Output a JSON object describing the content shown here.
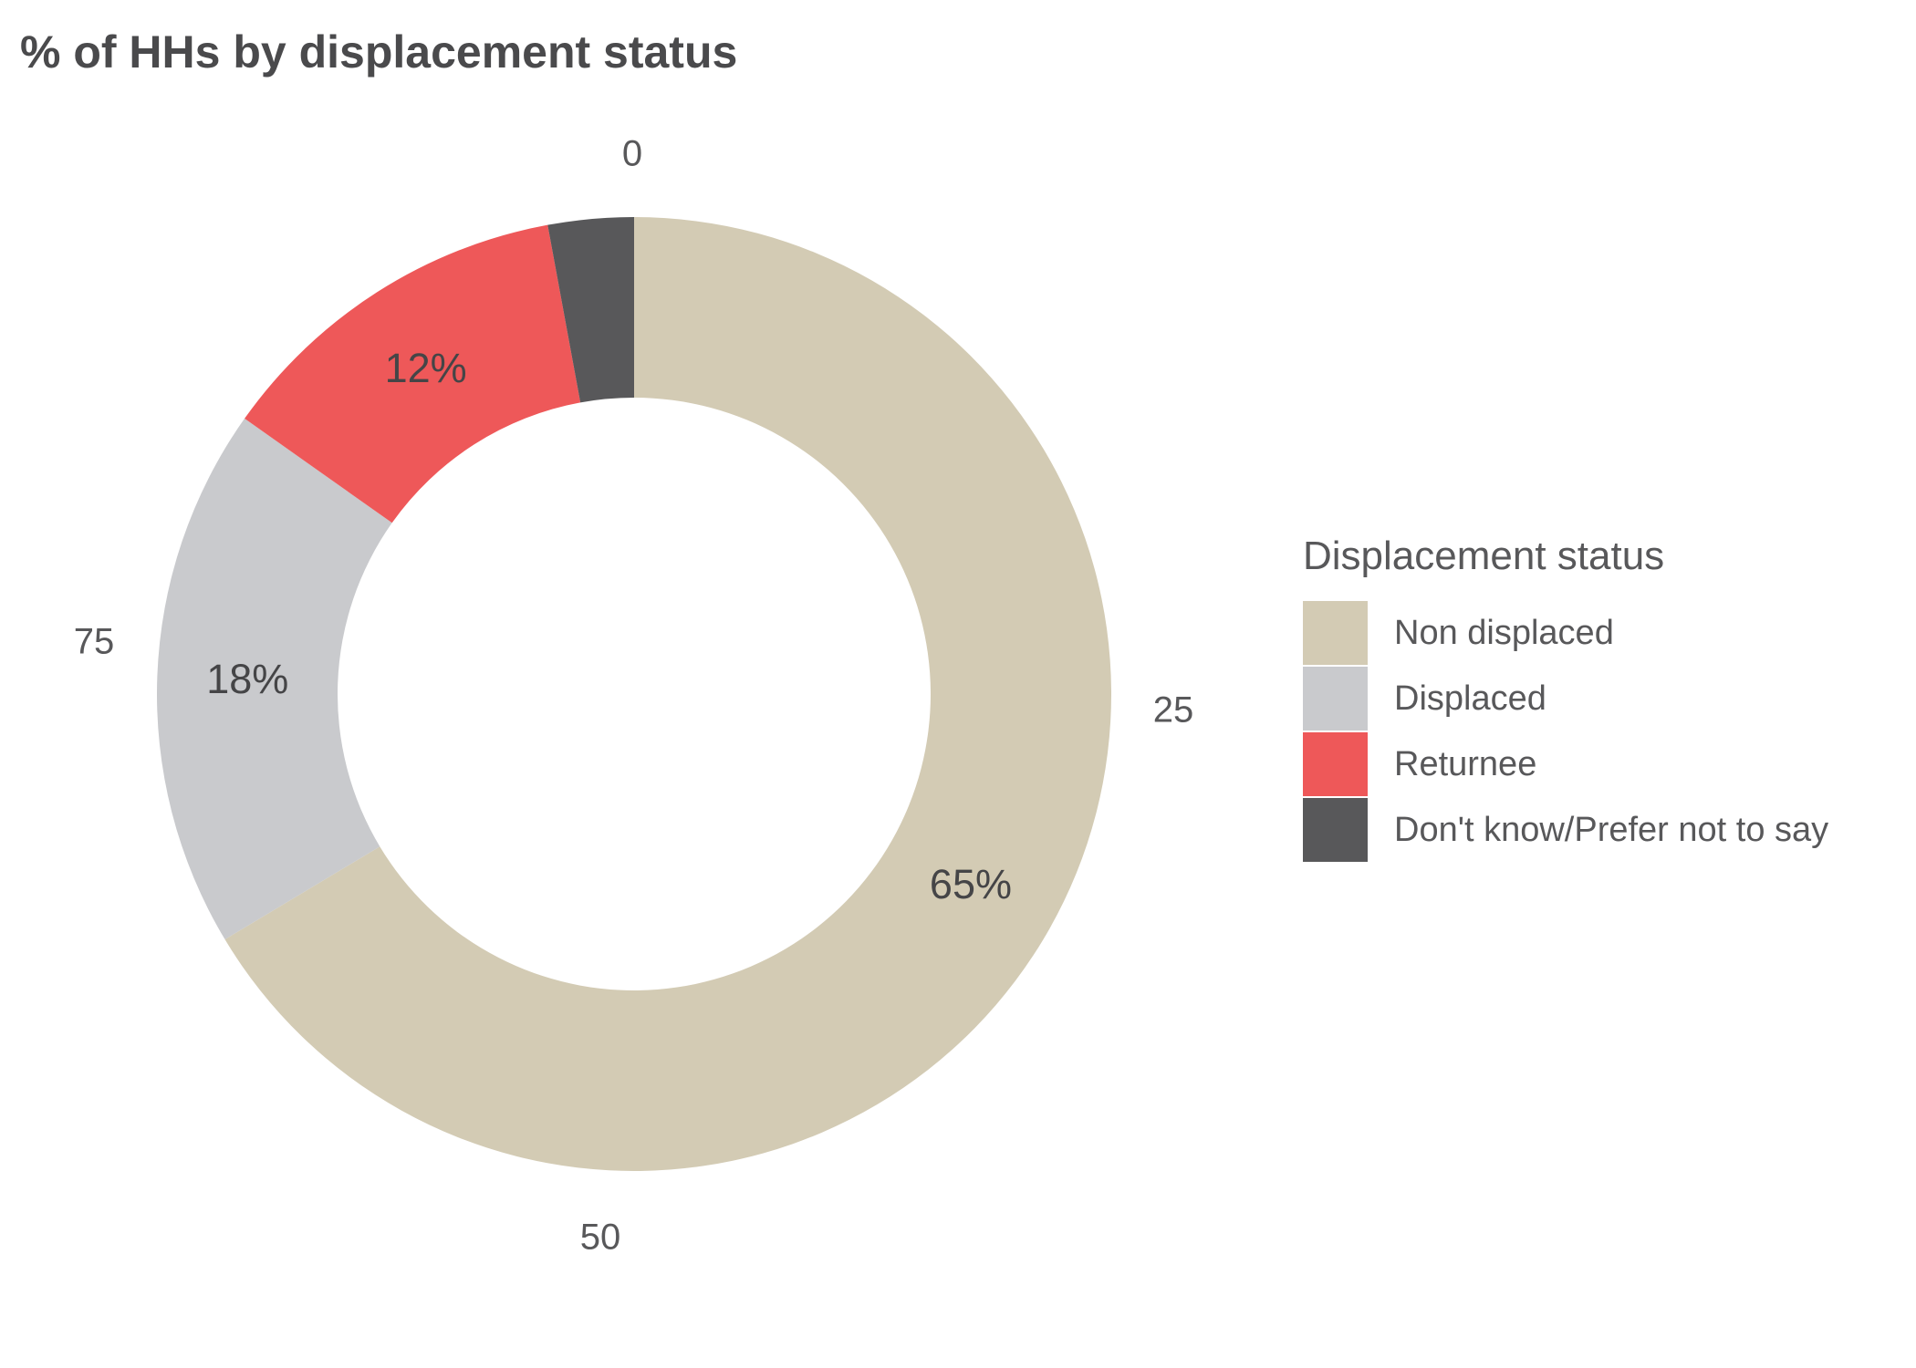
{
  "title": "% of HHs by displacement status",
  "chart_data": {
    "type": "pie",
    "subtype": "donut",
    "title": "% of HHs by displacement status",
    "direction": "clockwise",
    "start_angle_deg": 0,
    "legend_position": "right",
    "grid": false,
    "axis_ticks": [
      {
        "label": "0",
        "value": 0
      },
      {
        "label": "25",
        "value": 25
      },
      {
        "label": "50",
        "value": 50
      },
      {
        "label": "75",
        "value": 75
      }
    ],
    "slices": [
      {
        "name": "Non displaced",
        "label": "65%",
        "value": 65,
        "arc_percent": 66.4,
        "color": "#D3CBB4"
      },
      {
        "name": "Displaced",
        "label": "18%",
        "value": 18,
        "arc_percent": 18.4,
        "color": "#C9CACD"
      },
      {
        "name": "Returnee",
        "label": "12%",
        "value": 12,
        "arc_percent": 12.3,
        "color": "#EE5859"
      },
      {
        "name": "Don't know/Prefer not to say",
        "label": "",
        "value": null,
        "arc_percent": 2.9,
        "color": "#58585A"
      }
    ],
    "legend": {
      "title": "Displacement status",
      "entries": [
        "Non displaced",
        "Displaced",
        "Returnee",
        "Don't know/Prefer not to say"
      ]
    }
  },
  "colors": {
    "background": "#FFFFFF",
    "title_text": "#4A4A4C",
    "axis_text": "#58585A",
    "slice_label_text": "#454547",
    "legend_text": "#58585A"
  }
}
